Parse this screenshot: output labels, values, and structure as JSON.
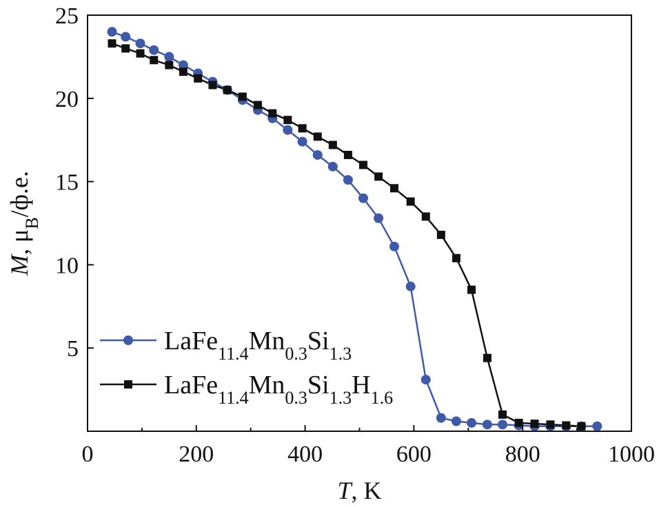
{
  "chart_data": {
    "type": "line",
    "xlabel_var": "T",
    "xlabel_unit": ", K",
    "ylabel_var": "M",
    "ylabel_mid": ", μ",
    "ylabel_sub": "B",
    "ylabel_unit": "/ф.е.",
    "xlim": [
      0,
      1000
    ],
    "ylim": [
      0,
      25
    ],
    "xticks": [
      "0",
      "200",
      "400",
      "600",
      "800",
      "1000"
    ],
    "yticks": [
      "5",
      "10",
      "15",
      "20",
      "25"
    ],
    "xtick_values": [
      0,
      200,
      400,
      600,
      800,
      1000
    ],
    "ytick_values": [
      5,
      10,
      15,
      20,
      25
    ],
    "grid": false,
    "legend_position": "lower-left",
    "series": [
      {
        "name": "LaFe11.4Mn0.3Si1.3",
        "label_parts": [
          [
            "LaFe",
            ""
          ],
          [
            "11.4",
            "sub"
          ],
          [
            "Mn",
            ""
          ],
          [
            "0.3",
            "sub"
          ],
          [
            "Si",
            ""
          ],
          [
            "1.3",
            "sub"
          ]
        ],
        "color": "#3f5aa8",
        "marker": "circle",
        "x": [
          45,
          70,
          97,
          122,
          150,
          176,
          203,
          230,
          257,
          285,
          313,
          340,
          368,
          395,
          423,
          451,
          479,
          507,
          535,
          564,
          594,
          622,
          650,
          678,
          706,
          735,
          763,
          793,
          822,
          851,
          880,
          908,
          937
        ],
        "y": [
          24.0,
          23.7,
          23.3,
          22.9,
          22.5,
          22.0,
          21.5,
          21.0,
          20.5,
          19.9,
          19.3,
          18.8,
          18.1,
          17.4,
          16.6,
          15.9,
          15.1,
          14.0,
          12.8,
          11.1,
          8.7,
          3.1,
          0.8,
          0.6,
          0.5,
          0.4,
          0.4,
          0.35,
          0.3,
          0.3,
          0.3,
          0.3,
          0.3
        ]
      },
      {
        "name": "LaFe11.4Mn0.3Si1.3H1.6",
        "label_parts": [
          [
            "LaFe",
            ""
          ],
          [
            "11.4",
            "sub"
          ],
          [
            "Mn",
            ""
          ],
          [
            "0.3",
            "sub"
          ],
          [
            "Si",
            ""
          ],
          [
            "1.3",
            "sub"
          ],
          [
            "H",
            ""
          ],
          [
            "1.6",
            "sub"
          ]
        ],
        "color": "#111111",
        "marker": "square",
        "x": [
          45,
          70,
          97,
          122,
          150,
          176,
          203,
          230,
          257,
          285,
          313,
          340,
          368,
          395,
          423,
          451,
          479,
          507,
          535,
          564,
          594,
          622,
          650,
          678,
          706,
          735,
          763,
          793,
          822,
          851,
          880,
          908
        ],
        "y": [
          23.3,
          23.0,
          22.7,
          22.3,
          22.0,
          21.6,
          21.2,
          20.8,
          20.5,
          20.1,
          19.6,
          19.1,
          18.7,
          18.2,
          17.7,
          17.2,
          16.6,
          16.0,
          15.3,
          14.6,
          13.8,
          12.9,
          11.8,
          10.4,
          8.5,
          4.4,
          1.0,
          0.5,
          0.45,
          0.4,
          0.35,
          0.3
        ]
      }
    ]
  }
}
